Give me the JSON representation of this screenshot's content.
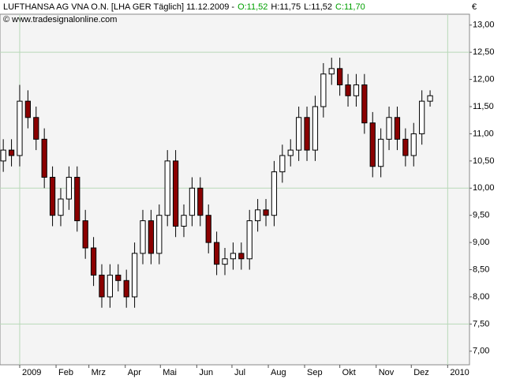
{
  "chart_data": {
    "type": "candlestick",
    "title": "LUFTHANSA AG VNA O.N. [LHA GER  Täglich] 11.12.2009 -",
    "quote": [
      {
        "text": "O:11,52",
        "color": "#00a000"
      },
      {
        "text": "H:11,75",
        "color": "#000000"
      },
      {
        "text": "L:11,52",
        "color": "#000000"
      },
      {
        "text": "C:11,70",
        "color": "#00a000"
      }
    ],
    "subtitle": "© www.tradesignalonline.com",
    "currency": "€",
    "x": [
      -2,
      -1,
      0,
      1,
      2,
      3,
      4,
      5,
      6,
      7,
      8,
      9,
      10,
      11,
      12,
      13,
      14,
      15,
      16,
      17,
      18,
      19,
      20,
      21,
      22,
      23,
      24,
      25,
      26,
      27,
      28,
      29,
      30,
      31,
      32,
      33,
      34,
      35,
      36,
      37,
      38,
      39,
      40,
      41,
      42,
      43,
      44,
      45,
      46,
      47,
      48,
      49,
      50
    ],
    "open": [
      10.5,
      10.7,
      10.6,
      11.6,
      11.3,
      10.9,
      10.2,
      9.5,
      9.8,
      10.2,
      9.4,
      8.9,
      8.4,
      8.0,
      8.4,
      8.3,
      8.0,
      8.8,
      9.4,
      8.8,
      9.5,
      10.5,
      9.3,
      9.5,
      10.0,
      9.5,
      9.0,
      8.6,
      8.7,
      8.8,
      8.7,
      9.4,
      9.6,
      9.5,
      10.3,
      10.6,
      10.7,
      11.3,
      10.7,
      11.5,
      12.1,
      12.2,
      11.9,
      11.7,
      11.9,
      11.2,
      10.4,
      10.9,
      11.3,
      10.9,
      10.6,
      11.0,
      11.6
    ],
    "high": [
      10.9,
      10.9,
      11.9,
      11.8,
      11.5,
      11.1,
      10.4,
      10.0,
      10.4,
      10.4,
      9.6,
      9.1,
      8.6,
      8.6,
      8.6,
      8.5,
      9.0,
      9.6,
      9.6,
      9.7,
      10.7,
      10.7,
      9.7,
      10.2,
      10.2,
      9.7,
      9.2,
      8.9,
      9.0,
      9.0,
      9.6,
      9.8,
      9.8,
      10.5,
      10.8,
      10.9,
      11.5,
      11.5,
      11.7,
      12.3,
      12.4,
      12.4,
      12.1,
      12.1,
      12.1,
      11.4,
      11.1,
      11.5,
      11.5,
      11.1,
      11.2,
      11.8,
      11.8
    ],
    "low": [
      10.3,
      10.4,
      10.4,
      11.1,
      10.7,
      10.0,
      9.3,
      9.3,
      9.6,
      9.2,
      8.7,
      8.2,
      7.8,
      7.8,
      8.1,
      7.8,
      7.8,
      8.6,
      8.6,
      8.6,
      9.3,
      9.1,
      9.1,
      9.3,
      9.3,
      8.8,
      8.4,
      8.4,
      8.5,
      8.5,
      8.5,
      9.2,
      9.3,
      9.3,
      10.1,
      10.4,
      10.5,
      10.5,
      10.5,
      11.3,
      11.9,
      11.7,
      11.5,
      11.5,
      11.0,
      10.2,
      10.2,
      10.7,
      10.7,
      10.4,
      10.4,
      10.8,
      11.5
    ],
    "close": [
      10.7,
      10.6,
      11.6,
      11.3,
      10.9,
      10.2,
      9.5,
      9.8,
      10.2,
      9.4,
      8.9,
      8.4,
      8.0,
      8.4,
      8.3,
      8.0,
      8.8,
      9.4,
      8.8,
      9.5,
      10.5,
      9.3,
      9.5,
      10.0,
      9.5,
      9.0,
      8.6,
      8.7,
      8.8,
      8.7,
      9.4,
      9.6,
      9.5,
      10.3,
      10.6,
      10.7,
      11.3,
      10.7,
      11.5,
      12.1,
      12.2,
      11.9,
      11.7,
      11.9,
      11.2,
      10.4,
      10.9,
      11.3,
      10.9,
      10.6,
      11.0,
      11.6,
      11.7
    ],
    "up_color": "#ffffff",
    "down_color": "#8b0000",
    "xlim": [
      -2.4,
      54.8
    ],
    "xticks": [
      {
        "value": 0,
        "label": "2009"
      },
      {
        "value": 4.43,
        "label": "Feb"
      },
      {
        "value": 8.43,
        "label": "Mrz"
      },
      {
        "value": 12.86,
        "label": "Apr"
      },
      {
        "value": 17.14,
        "label": "Mai"
      },
      {
        "value": 21.57,
        "label": "Jun"
      },
      {
        "value": 25.86,
        "label": "Jul"
      },
      {
        "value": 30.29,
        "label": "Aug"
      },
      {
        "value": 34.71,
        "label": "Sep"
      },
      {
        "value": 39,
        "label": "Okt"
      },
      {
        "value": 43.43,
        "label": "Nov"
      },
      {
        "value": 47.71,
        "label": "Dez"
      },
      {
        "value": 52.14,
        "label": "2010"
      }
    ],
    "ylim": [
      6.75,
      13.2
    ],
    "yticks": [
      {
        "value": 7,
        "label": "7,00"
      },
      {
        "value": 7.5,
        "label": "7,50"
      },
      {
        "value": 8,
        "label": "8,00"
      },
      {
        "value": 8.5,
        "label": "8,50"
      },
      {
        "value": 9,
        "label": "9,00"
      },
      {
        "value": 9.5,
        "label": "9,50"
      },
      {
        "value": 10,
        "label": "10,00"
      },
      {
        "value": 10.5,
        "label": "10,50"
      },
      {
        "value": 11,
        "label": "11,00"
      },
      {
        "value": 11.5,
        "label": "11,50"
      },
      {
        "value": 12,
        "label": "12,00"
      },
      {
        "value": 12.5,
        "label": "12,50"
      },
      {
        "value": 13,
        "label": "13,00"
      }
    ],
    "ygrid": [
      7.5,
      10,
      12.5
    ],
    "xgrid": [
      0,
      52.14
    ],
    "grid_color": "#b8d8b8"
  }
}
